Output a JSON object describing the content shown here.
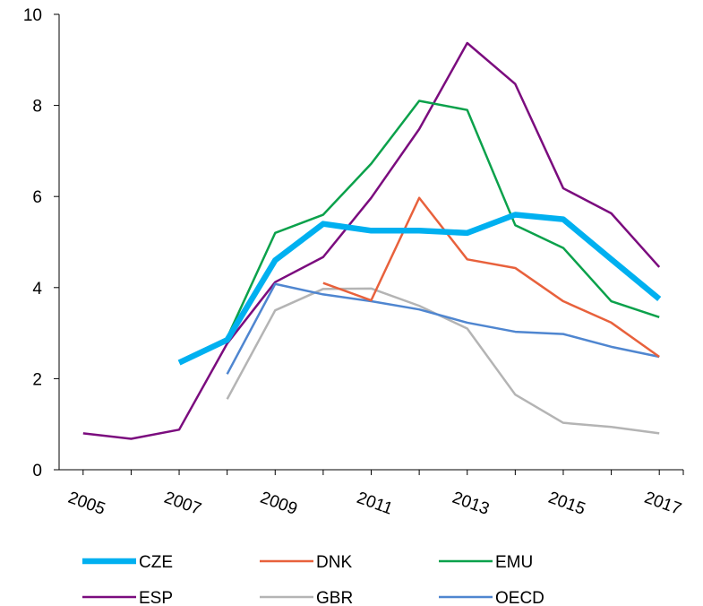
{
  "chart_data": {
    "type": "line",
    "title": "",
    "xlabel": "",
    "ylabel": "",
    "xlim": [
      2004.5,
      2017.5
    ],
    "ylim": [
      0,
      10
    ],
    "yticks": [
      0,
      2,
      4,
      6,
      8,
      10
    ],
    "xticks": [
      "2005",
      "2007",
      "2009",
      "2011",
      "2013",
      "2015",
      "2017"
    ],
    "grid": false,
    "legend_position": "bottom",
    "x": [
      2005,
      2006,
      2007,
      2008,
      2009,
      2010,
      2011,
      2012,
      2013,
      2014,
      2015,
      2016,
      2017
    ],
    "series": [
      {
        "name": "CZE",
        "color": "#00B0F0",
        "width": 6.5,
        "values": [
          null,
          null,
          2.35,
          2.85,
          4.6,
          5.4,
          5.25,
          5.25,
          5.2,
          5.6,
          5.5,
          4.62,
          3.75
        ]
      },
      {
        "name": "DNK",
        "color": "#E8613C",
        "width": 2.5,
        "values": [
          null,
          null,
          null,
          null,
          null,
          4.1,
          3.72,
          5.97,
          4.62,
          4.43,
          3.7,
          3.23,
          2.48
        ]
      },
      {
        "name": "EMU",
        "color": "#0BA14B",
        "width": 2.5,
        "values": [
          null,
          null,
          null,
          2.9,
          5.2,
          5.6,
          6.72,
          8.1,
          7.9,
          5.37,
          4.87,
          3.7,
          3.35
        ]
      },
      {
        "name": "ESP",
        "color": "#7B0C7E",
        "width": 2.5,
        "values": [
          0.8,
          0.68,
          0.88,
          2.77,
          4.12,
          4.67,
          5.97,
          7.48,
          9.37,
          8.47,
          6.18,
          5.63,
          4.45
        ]
      },
      {
        "name": "GBR",
        "color": "#B4B4B4",
        "width": 2.5,
        "values": [
          null,
          null,
          null,
          1.55,
          3.5,
          3.97,
          3.98,
          3.6,
          3.1,
          1.65,
          1.03,
          0.94,
          0.8
        ]
      },
      {
        "name": "OECD",
        "color": "#4F86D0",
        "width": 2.5,
        "values": [
          null,
          null,
          null,
          2.1,
          4.08,
          3.85,
          3.7,
          3.52,
          3.23,
          3.03,
          2.98,
          2.7,
          2.48
        ]
      }
    ]
  }
}
